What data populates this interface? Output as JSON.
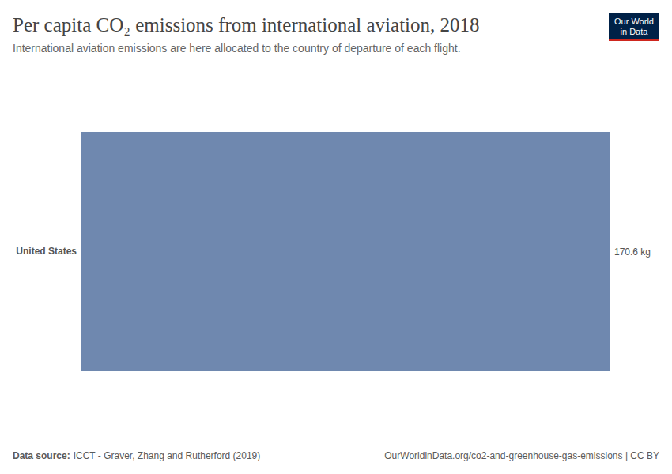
{
  "chart_data": {
    "type": "bar",
    "orientation": "horizontal",
    "title": "Per capita CO₂ emissions from international aviation, 2018",
    "subtitle": "International aviation emissions are here allocated to the country of departure of each flight.",
    "categories": [
      "United States"
    ],
    "values": [
      170.6
    ],
    "value_labels": [
      "170.6 kg"
    ],
    "data_labels": true,
    "color": "#6f88af",
    "xlim": [
      0,
      170.6
    ],
    "grid": false,
    "tick_labels": "y",
    "source_label": "Data source:",
    "source": "ICCT - Graver, Zhang and Rutherford (2019)",
    "url": "OurWorldinData.org/co2-and-greenhouse-gas-emissions | CC BY",
    "logo": [
      "Our World",
      "in Data"
    ]
  }
}
